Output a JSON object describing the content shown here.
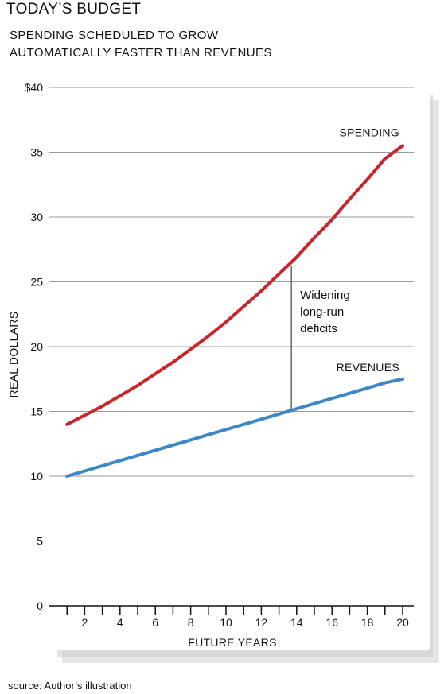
{
  "header": {
    "title": "TODAY’S BUDGET",
    "subtitle_line1": "SPENDING SCHEDULED TO GROW",
    "subtitle_line2": "AUTOMATICALLY FASTER THAN REVENUES"
  },
  "footer": {
    "source": "source: Author’s illustration"
  },
  "colors": {
    "spending": "#c9262c",
    "revenues": "#3d87c8",
    "grid": "#9a9a9a",
    "panel_shadow": "#cfcfcf"
  },
  "chart_data": {
    "type": "line",
    "title": "TODAY’S BUDGET",
    "subtitle": "SPENDING SCHEDULED TO GROW AUTOMATICALLY FASTER THAN REVENUES",
    "xlabel": "FUTURE YEARS",
    "ylabel": "REAL DOLLARS",
    "xlim": [
      0,
      20
    ],
    "ylim": [
      0,
      40
    ],
    "x_ticks": [
      2,
      4,
      6,
      8,
      10,
      12,
      14,
      16,
      18,
      20
    ],
    "y_ticks": [
      0,
      5,
      10,
      15,
      20,
      25,
      30,
      35,
      40
    ],
    "y_tick_labels": [
      "0",
      "5",
      "10",
      "15",
      "20",
      "25",
      "30",
      "35",
      "$40"
    ],
    "grid": "horizontal",
    "x": [
      1,
      2,
      3,
      4,
      5,
      6,
      7,
      8,
      9,
      10,
      11,
      12,
      13,
      14,
      15,
      16,
      17,
      18,
      19,
      20
    ],
    "series": [
      {
        "name": "SPENDING",
        "values": [
          14.0,
          14.7,
          15.4,
          16.2,
          17.0,
          17.9,
          18.8,
          19.8,
          20.8,
          21.9,
          23.1,
          24.3,
          25.6,
          26.9,
          28.4,
          29.8,
          31.4,
          32.9,
          34.5,
          35.5
        ]
      },
      {
        "name": "REVENUES",
        "values": [
          10.0,
          10.4,
          10.8,
          11.2,
          11.6,
          12.0,
          12.4,
          12.8,
          13.2,
          13.6,
          14.0,
          14.4,
          14.8,
          15.2,
          15.6,
          16.0,
          16.4,
          16.8,
          17.2,
          17.5
        ]
      }
    ],
    "annotation": {
      "lines": [
        "Widening",
        "long-run",
        "deficits"
      ],
      "x": 13.7
    }
  }
}
